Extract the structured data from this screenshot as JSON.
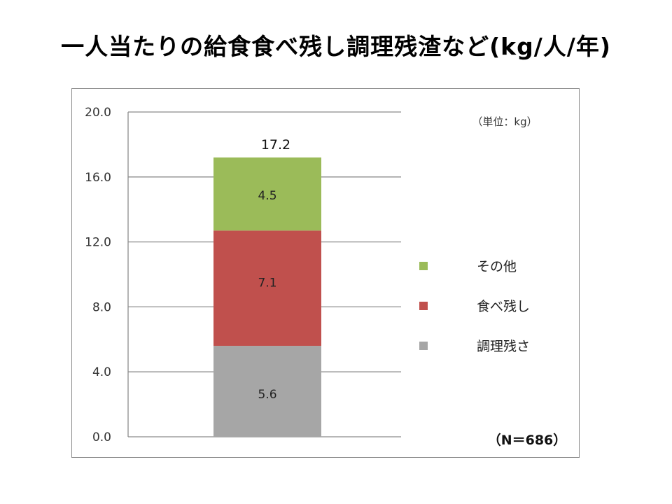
{
  "title": "一人当たりの給食食べ残し調理残渣など(kg/人/年)",
  "chart_data": {
    "type": "bar",
    "stacked": true,
    "categories": [
      ""
    ],
    "series": [
      {
        "name": "調理残さ",
        "values": [
          5.6
        ],
        "color": "#a6a6a6"
      },
      {
        "name": "食べ残し",
        "values": [
          7.1
        ],
        "color": "#c0504d"
      },
      {
        "name": "その他",
        "values": [
          4.5
        ],
        "color": "#9bbb59"
      }
    ],
    "total_label": "17.2",
    "ylim": [
      0,
      20
    ],
    "yticks": [
      "0.0",
      "4.0",
      "8.0",
      "12.0",
      "16.0",
      "20.0"
    ],
    "grid": true,
    "legend": "right",
    "unit_note": "（単位：kg）",
    "sample_note": "（N＝686）"
  }
}
